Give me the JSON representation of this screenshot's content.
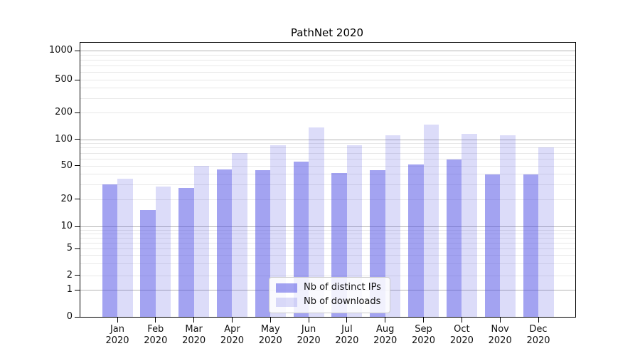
{
  "title": "PathNet 2020",
  "colors": {
    "distinct_ips_bar": "#a3a3f1",
    "downloads_bar": "#dcdcf9",
    "major_gridline": "#b4b4b4",
    "minor_gridline": "#e8e8e8",
    "axis": "#000000"
  },
  "chart_data": {
    "type": "bar",
    "title": "PathNet 2020",
    "categories": [
      "Jan 2020",
      "Feb 2020",
      "Mar 2020",
      "Apr 2020",
      "May 2020",
      "Jun 2020",
      "Jul 2020",
      "Aug 2020",
      "Sep 2020",
      "Oct 2020",
      "Nov 2020",
      "Dec 2020"
    ],
    "series": [
      {
        "name": "Nb of distinct IPs",
        "color": "#a3a3f1",
        "values": [
          30,
          15,
          27,
          45,
          44,
          55,
          41,
          44,
          51,
          59,
          39,
          39
        ]
      },
      {
        "name": "Nb of downloads",
        "color": "#dcdcf9",
        "values": [
          35,
          28,
          50,
          70,
          85,
          135,
          85,
          110,
          145,
          115,
          110,
          80
        ]
      }
    ],
    "xlabel": "",
    "ylabel": "",
    "yscale": "log-like (symlog, linear below 1)",
    "yticks": [
      0,
      1,
      2,
      5,
      10,
      20,
      50,
      100,
      200,
      500,
      1000
    ],
    "ylim": [
      0,
      1200
    ],
    "grid": "horizontal major and minor gridlines",
    "legend_position": "lower center inside plot"
  }
}
